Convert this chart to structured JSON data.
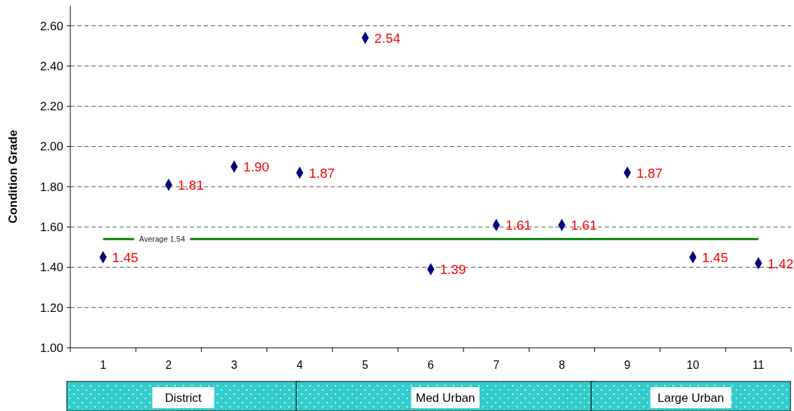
{
  "chart_data": {
    "type": "scatter",
    "ylabel": "Condition Grade",
    "categories": [
      "1",
      "2",
      "3",
      "4",
      "5",
      "6",
      "7",
      "8",
      "9",
      "10",
      "11"
    ],
    "series": [
      {
        "color": "#000080",
        "values": [
          1.45,
          1.81,
          1.9,
          1.87,
          2.54,
          1.39,
          1.61,
          1.61,
          1.87,
          1.45,
          1.42
        ],
        "value_labels": [
          "1.45",
          "1.81",
          "1.90",
          "1.87",
          "2.54",
          "1.39",
          "1.61",
          "1.61",
          "1.87",
          "1.45",
          "1.42"
        ]
      }
    ],
    "ylim": [
      1,
      2.7
    ],
    "yticks": [
      {
        "value": 1,
        "label": "1.00"
      },
      {
        "value": 1.2,
        "label": "1.20"
      },
      {
        "value": 1.4,
        "label": "1.40"
      },
      {
        "value": 1.6,
        "label": "1.60"
      },
      {
        "value": 1.8,
        "label": "1.80"
      },
      {
        "value": 2,
        "label": "2.00"
      },
      {
        "value": 2.2,
        "label": "2.20"
      },
      {
        "value": 2.4,
        "label": "2.40"
      },
      {
        "value": 2.6,
        "label": "2.60"
      }
    ],
    "grid": "y",
    "marker": "diamond",
    "ref_lines": [
      {
        "axis": "y",
        "value": 1.54,
        "label": "Average 1.54",
        "color": "#008000"
      }
    ],
    "annotations": [
      "District",
      "Med Urban",
      "Large Urban"
    ]
  }
}
